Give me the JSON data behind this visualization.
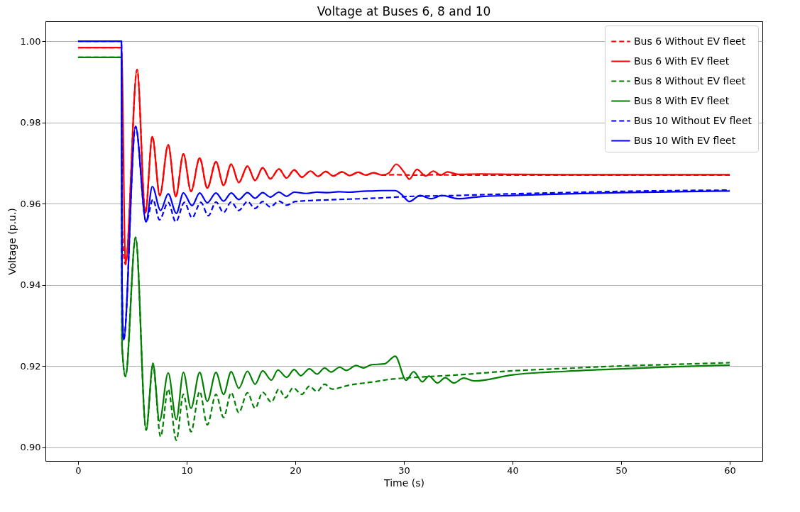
{
  "chart_data": {
    "type": "line",
    "title": "Voltage at Buses 6, 8 and 10",
    "xlabel": "Time (s)",
    "ylabel": "Voltage (p.u.)",
    "xlim": [
      -3,
      63
    ],
    "ylim": [
      0.8966,
      1.0049
    ],
    "xticks": [
      0,
      10,
      20,
      30,
      40,
      50,
      60
    ],
    "yticks": [
      {
        "value": 0.9,
        "label": "0.90"
      },
      0.92,
      0.94,
      0.96,
      0.98,
      {
        "value": 1.0,
        "label": "1.00"
      }
    ],
    "grid": "y",
    "legend": "top right",
    "marker": "none",
    "series": [
      {
        "name": "Bus 6 Without EV fleet",
        "color": "#ff0000",
        "line_style": "dashed",
        "x": [
          0,
          4,
          4.05,
          4.37,
          5.44,
          6.2,
          6.84,
          7.53,
          8.3,
          9.0,
          9.7,
          10.4,
          11.2,
          11.9,
          12.7,
          13.4,
          14.1,
          14.8,
          15.6,
          16.3,
          17.0,
          17.7,
          18.5,
          19.2,
          19.9,
          20.6,
          21.4,
          22.1,
          22.8,
          23.5,
          24.3,
          25.0,
          25.8,
          26.5,
          27.2,
          28.0,
          29,
          31,
          33,
          35,
          40,
          50,
          60
        ],
        "values": [
          0.9984,
          0.9984,
          0.955,
          0.945,
          0.993,
          0.9577,
          0.9765,
          0.962,
          0.9745,
          0.9617,
          0.9722,
          0.963,
          0.9712,
          0.9638,
          0.9703,
          0.9645,
          0.9697,
          0.9652,
          0.9692,
          0.9657,
          0.9688,
          0.9661,
          0.9685,
          0.9663,
          0.9683,
          0.9665,
          0.968,
          0.9667,
          0.9679,
          0.9668,
          0.9678,
          0.9669,
          0.9677,
          0.967,
          0.9676,
          0.967,
          0.9671,
          0.967,
          0.9671,
          0.967,
          0.967,
          0.967,
          0.967
        ]
      },
      {
        "name": "Bus 6 With EV fleet",
        "color": "#ff0000",
        "line_style": "solid",
        "x": [
          0,
          4,
          4.37,
          5.44,
          6.2,
          6.84,
          7.53,
          8.3,
          9.0,
          9.7,
          10.4,
          11.2,
          11.9,
          12.7,
          13.4,
          14.1,
          14.8,
          15.6,
          16.3,
          17.0,
          17.7,
          18.5,
          19.2,
          19.9,
          20.6,
          21.4,
          22.1,
          22.8,
          23.5,
          24.3,
          25.0,
          25.8,
          26.5,
          27.2,
          28.0,
          28.6,
          29.3,
          30.0,
          30.5,
          31.2,
          32.0,
          32.7,
          33.4,
          34.0,
          35,
          37,
          40,
          45,
          50,
          55,
          60
        ],
        "values": [
          0.9984,
          0.9984,
          0.945,
          0.993,
          0.9577,
          0.9765,
          0.962,
          0.9745,
          0.9617,
          0.9722,
          0.963,
          0.9712,
          0.9638,
          0.9703,
          0.9645,
          0.9697,
          0.9652,
          0.9692,
          0.9657,
          0.9688,
          0.9661,
          0.9685,
          0.9663,
          0.9683,
          0.9665,
          0.968,
          0.9667,
          0.9679,
          0.9668,
          0.9678,
          0.9669,
          0.9677,
          0.967,
          0.9676,
          0.967,
          0.9675,
          0.9697,
          0.9678,
          0.966,
          0.9684,
          0.9668,
          0.968,
          0.967,
          0.9678,
          0.9672,
          0.9673,
          0.9672,
          0.9671,
          0.9671,
          0.9671,
          0.9671
        ]
      },
      {
        "name": "Bus 8 Without EV fleet",
        "color": "#008000",
        "line_style": "dashed",
        "x": [
          0,
          4,
          4.05,
          4.37,
          5.3,
          6.27,
          6.9,
          7.6,
          8.3,
          9.05,
          9.7,
          10.4,
          11.2,
          11.9,
          12.7,
          13.4,
          14.1,
          14.8,
          15.6,
          16.3,
          17.0,
          17.8,
          18.5,
          19.1,
          19.8,
          20.6,
          21.3,
          22.0,
          22.7,
          23.4,
          25,
          27,
          29,
          30,
          35,
          40,
          45,
          50,
          55,
          60
        ],
        "values": [
          0.996,
          0.996,
          0.925,
          0.9174,
          0.9517,
          0.9042,
          0.92,
          0.9026,
          0.9143,
          0.9017,
          0.913,
          0.9038,
          0.9137,
          0.9055,
          0.913,
          0.9073,
          0.9134,
          0.9085,
          0.9134,
          0.9096,
          0.9135,
          0.9111,
          0.9143,
          0.9122,
          0.9146,
          0.913,
          0.915,
          0.9137,
          0.9155,
          0.9143,
          0.9153,
          0.916,
          0.9168,
          0.917,
          0.9178,
          0.9188,
          0.9194,
          0.92,
          0.9204,
          0.9208
        ]
      },
      {
        "name": "Bus 8 With EV fleet",
        "color": "#008000",
        "line_style": "solid",
        "x": [
          0,
          4,
          4.05,
          4.37,
          5.3,
          6.27,
          6.9,
          7.5,
          8.3,
          9.05,
          9.7,
          10.4,
          11.2,
          11.9,
          12.7,
          13.4,
          14.1,
          14.8,
          15.6,
          16.3,
          17.0,
          17.8,
          18.4,
          19.2,
          19.9,
          20.5,
          21.3,
          22.0,
          22.7,
          23.3,
          24.1,
          24.7,
          25.6,
          26.3,
          27.0,
          28.2,
          29.2,
          30.2,
          30.9,
          31.7,
          32.3,
          33.1,
          33.8,
          34.6,
          35.5,
          36.5,
          40,
          45,
          50,
          55,
          60
        ],
        "values": [
          0.996,
          0.996,
          0.925,
          0.9174,
          0.9517,
          0.9042,
          0.9207,
          0.9064,
          0.9183,
          0.9068,
          0.9184,
          0.9096,
          0.9184,
          0.9113,
          0.9184,
          0.913,
          0.9186,
          0.9145,
          0.9187,
          0.9155,
          0.9188,
          0.9165,
          0.919,
          0.9172,
          0.9191,
          0.9176,
          0.9193,
          0.918,
          0.9195,
          0.9185,
          0.9197,
          0.9189,
          0.9201,
          0.9195,
          0.9203,
          0.9205,
          0.9224,
          0.9165,
          0.9186,
          0.9161,
          0.9175,
          0.9158,
          0.9171,
          0.9158,
          0.917,
          0.9163,
          0.9178,
          0.9187,
          0.9193,
          0.9198,
          0.9202
        ]
      },
      {
        "name": "Bus 10 Without EV fleet",
        "color": "#0000ff",
        "line_style": "dashed",
        "x": [
          0,
          4,
          4.05,
          4.2,
          5.3,
          6.27,
          6.9,
          7.5,
          8.3,
          9.0,
          9.8,
          10.5,
          11.3,
          12.0,
          12.7,
          13.4,
          14.1,
          14.8,
          15.6,
          16.3,
          17.0,
          17.7,
          18.5,
          19.2,
          20,
          22,
          25,
          28,
          30,
          35,
          40,
          45,
          50,
          55,
          60
        ],
        "values": [
          1.0,
          1.0,
          0.94,
          0.9264,
          0.979,
          0.9555,
          0.961,
          0.956,
          0.9603,
          0.9555,
          0.9603,
          0.9565,
          0.9603,
          0.957,
          0.9604,
          0.9578,
          0.9604,
          0.9583,
          0.9605,
          0.9588,
          0.9605,
          0.9592,
          0.9606,
          0.9596,
          0.9605,
          0.9608,
          0.9611,
          0.9614,
          0.9617,
          0.962,
          0.9624,
          0.9627,
          0.963,
          0.9632,
          0.9633
        ]
      },
      {
        "name": "Bus 10 With EV fleet",
        "color": "#0000ff",
        "line_style": "solid",
        "x": [
          0,
          4,
          4.05,
          4.2,
          5.3,
          6.27,
          6.84,
          7.6,
          8.3,
          9.05,
          9.7,
          10.5,
          11.2,
          11.9,
          12.7,
          13.4,
          14.1,
          14.8,
          15.6,
          16.3,
          17.0,
          17.7,
          18.5,
          19.2,
          19.9,
          21,
          22,
          23,
          24,
          25,
          26,
          27,
          28,
          29.2,
          29.8,
          30.5,
          31.5,
          32.5,
          33.5,
          35,
          37,
          40,
          45,
          50,
          55,
          60
        ],
        "values": [
          1.0,
          1.0,
          0.94,
          0.9264,
          0.979,
          0.9555,
          0.9642,
          0.9583,
          0.9624,
          0.9576,
          0.9626,
          0.9595,
          0.9626,
          0.9602,
          0.9626,
          0.9606,
          0.9626,
          0.961,
          0.9627,
          0.9613,
          0.9627,
          0.9616,
          0.9628,
          0.9618,
          0.9628,
          0.9625,
          0.9628,
          0.9627,
          0.9629,
          0.9628,
          0.963,
          0.9631,
          0.9632,
          0.9632,
          0.9622,
          0.9605,
          0.962,
          0.9612,
          0.962,
          0.9612,
          0.9617,
          0.962,
          0.9624,
          0.9627,
          0.9629,
          0.9631
        ]
      }
    ]
  }
}
